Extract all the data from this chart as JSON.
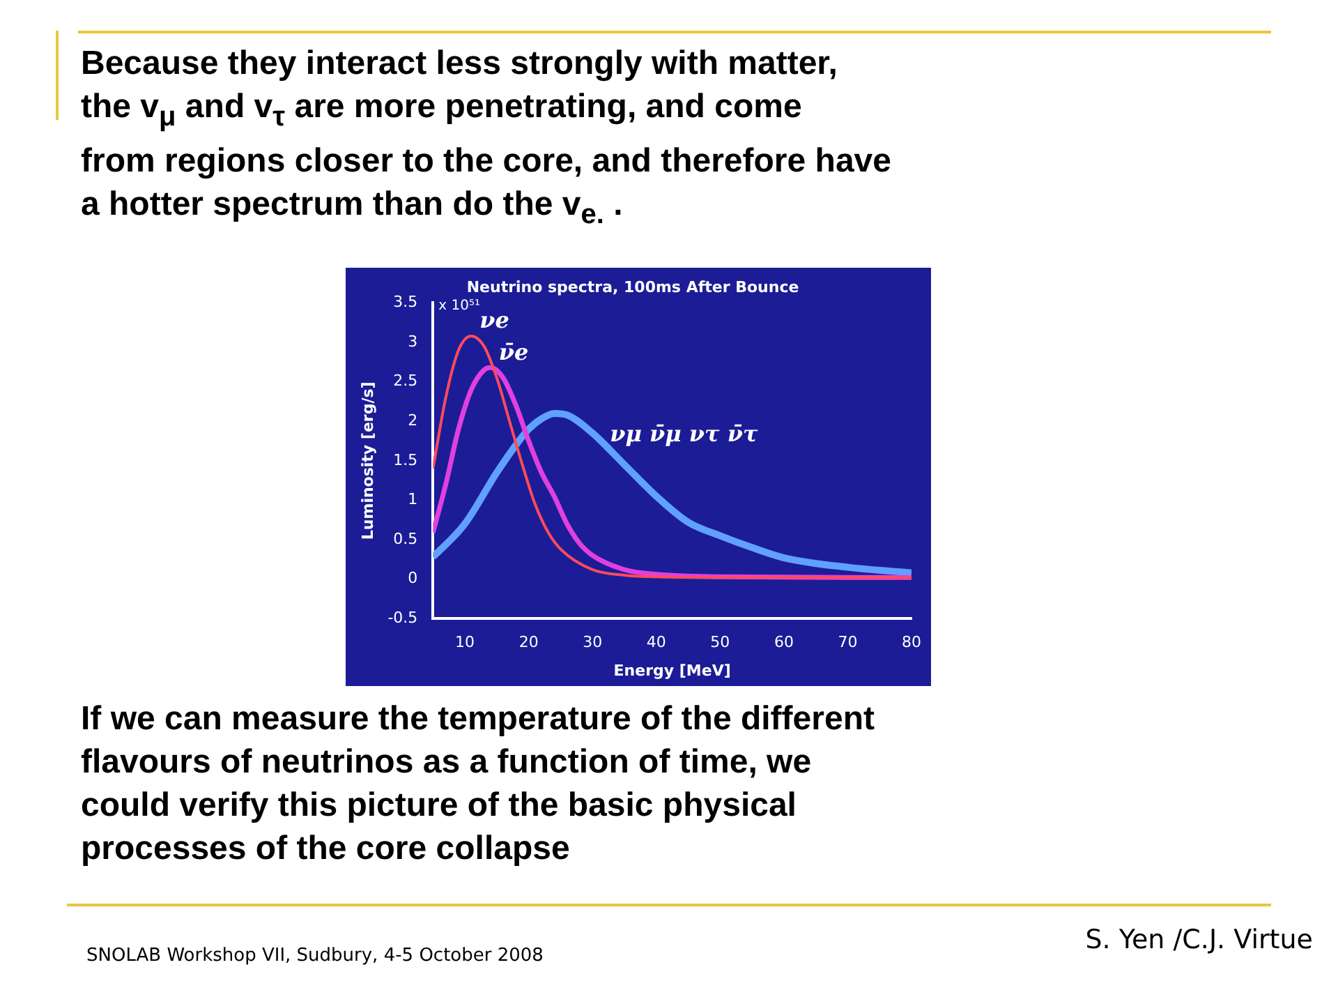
{
  "chart_data": {
    "type": "line",
    "title": "Neutrino spectra, 100ms After Bounce",
    "xlabel": "Energy [MeV]",
    "ylabel": "Luminosity [erg/s]",
    "xlim": [
      5,
      80
    ],
    "ylim": [
      -0.5,
      3.5
    ],
    "xticks": [
      10,
      20,
      30,
      40,
      50,
      60,
      70,
      80
    ],
    "yticks": [
      -0.5,
      0,
      0.5,
      1,
      1.5,
      2,
      2.5,
      3,
      3.5
    ],
    "grid": false,
    "legend": false,
    "marker": "none",
    "line_style": "solid",
    "series": [
      {
        "name": "νe",
        "color": "#ff4a5a",
        "x": [
          5,
          7,
          9,
          11,
          13,
          15,
          17,
          19,
          21,
          23,
          25,
          30,
          35,
          40,
          50,
          80
        ],
        "values": [
          1.4,
          2.3,
          2.9,
          3.08,
          2.95,
          2.55,
          2.0,
          1.45,
          0.95,
          0.6,
          0.38,
          0.12,
          0.05,
          0.03,
          0.02,
          0.02
        ]
      },
      {
        "name": "ν̄e",
        "color": "#e040e0",
        "x": [
          5,
          7,
          9,
          11,
          13,
          14,
          16,
          18,
          20,
          22,
          24,
          26,
          28,
          30,
          35,
          40,
          50,
          80
        ],
        "values": [
          0.59,
          1.2,
          1.9,
          2.4,
          2.65,
          2.68,
          2.55,
          2.2,
          1.75,
          1.35,
          1.05,
          0.7,
          0.45,
          0.3,
          0.12,
          0.06,
          0.03,
          0.02
        ]
      },
      {
        "name": "νμ ν̄μ ντ ν̄τ",
        "color": "#60a0ff",
        "x": [
          5,
          10,
          15,
          18,
          20,
          22,
          24,
          26,
          30,
          35,
          40,
          45,
          50,
          55,
          60,
          70,
          80
        ],
        "values": [
          0.28,
          0.7,
          1.35,
          1.7,
          1.9,
          2.03,
          2.1,
          2.08,
          1.85,
          1.45,
          1.05,
          0.72,
          0.55,
          0.4,
          0.27,
          0.15,
          0.08
        ]
      }
    ],
    "annotations": [
      "Because they interact less strongly with matter,\nthe v$_{μ}$ and v$_{τ}$ are more penetrating, and come\nfrom regions closer to the core, and therefore have\na hotter spectrum than do the v$_{e.}$ .",
      "If we can measure the temperature of the different\nflavours of neutrinos as a function of time, we\ncould verify this picture of the basic physical\nprocesses of the core collapse",
      "SNOLAB Workshop VII, Sudbury, 4-5 October 2008",
      "S. Yen /C.J. Virtue",
      "x 10⁵¹"
    ]
  }
}
